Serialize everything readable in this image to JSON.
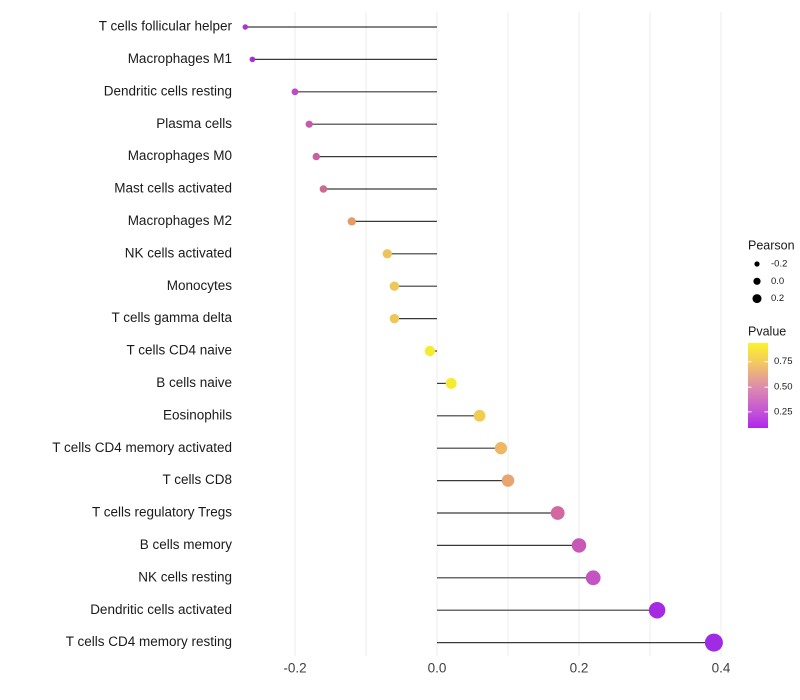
{
  "chart_data": {
    "type": "lollipop",
    "title": "",
    "xlabel": "",
    "ylabel": "",
    "x_ticks": [
      -0.2,
      0.0,
      0.2,
      0.4
    ],
    "x_tick_labels": [
      "-0.2",
      "0.0",
      "0.2",
      "0.4"
    ],
    "xlim": [
      -0.31,
      0.46
    ],
    "grid_ticks": [
      -0.2,
      -0.1,
      0.0,
      0.1,
      0.2,
      0.3,
      0.4
    ],
    "points": [
      {
        "label": "T cells follicular helper",
        "pearson": -0.27,
        "color": "#A637CC"
      },
      {
        "label": "Macrophages M1",
        "pearson": -0.26,
        "color": "#A432D2"
      },
      {
        "label": "Dendritic cells resting",
        "pearson": -0.2,
        "color": "#BB4EC6"
      },
      {
        "label": "Plasma cells",
        "pearson": -0.18,
        "color": "#C65BAB"
      },
      {
        "label": "Macrophages M0",
        "pearson": -0.17,
        "color": "#C95F9F"
      },
      {
        "label": "Mast cells activated",
        "pearson": -0.16,
        "color": "#CE6990"
      },
      {
        "label": "Macrophages M2",
        "pearson": -0.12,
        "color": "#E59A67"
      },
      {
        "label": "NK cells activated",
        "pearson": -0.07,
        "color": "#EDC35B"
      },
      {
        "label": "Monocytes",
        "pearson": -0.06,
        "color": "#EEC857"
      },
      {
        "label": "T cells gamma delta",
        "pearson": -0.06,
        "color": "#EEC857"
      },
      {
        "label": "T cells CD4 naive",
        "pearson": -0.01,
        "color": "#F5EB2F"
      },
      {
        "label": "B cells naive",
        "pearson": 0.02,
        "color": "#F5EB2F"
      },
      {
        "label": "Eosinophils",
        "pearson": 0.06,
        "color": "#F0CC50"
      },
      {
        "label": "T cells CD4 memory activated",
        "pearson": 0.09,
        "color": "#EDB763"
      },
      {
        "label": "T cells CD8",
        "pearson": 0.1,
        "color": "#E9A570"
      },
      {
        "label": "T cells regulatory  Tregs",
        "pearson": 0.17,
        "color": "#D168A0"
      },
      {
        "label": "B cells memory",
        "pearson": 0.2,
        "color": "#C758B6"
      },
      {
        "label": "NK cells resting",
        "pearson": 0.22,
        "color": "#C354C2"
      },
      {
        "label": "Dendritic cells activated",
        "pearson": 0.31,
        "color": "#A42BE2"
      },
      {
        "label": "T cells CD4 memory resting",
        "pearson": 0.39,
        "color": "#9F2BE4"
      }
    ],
    "legend_size": {
      "title": "Pearson",
      "items": [
        {
          "label": "-0.2",
          "r": 2.6
        },
        {
          "label": "0.0",
          "r": 3.6
        },
        {
          "label": "0.2",
          "r": 4.5
        }
      ],
      "dot_color": "#000000"
    },
    "legend_color": {
      "title": "Pvalue",
      "tick_labels": [
        "0.75",
        "0.50",
        "0.25"
      ],
      "tick_positions": [
        0.22,
        0.52,
        0.81
      ],
      "gradient_stops": [
        {
          "offset": 0.0,
          "color": "#FAF32B"
        },
        {
          "offset": 0.22,
          "color": "#F4CB5E"
        },
        {
          "offset": 0.52,
          "color": "#DE8BAE"
        },
        {
          "offset": 0.81,
          "color": "#C353D6"
        },
        {
          "offset": 1.0,
          "color": "#B026EC"
        }
      ]
    },
    "style": {
      "stem_color": "#3A3A3A",
      "grid_color": "#EDEDED",
      "y_label_color": "#1A1A1A",
      "x_tick_color": "#404040",
      "legend_text_color": "#1A1A1A",
      "background": "#FFFFFF"
    },
    "layout_hints": {
      "grid": "vertical-only",
      "legend_position": "right",
      "zero_line_at": 0.0
    }
  }
}
